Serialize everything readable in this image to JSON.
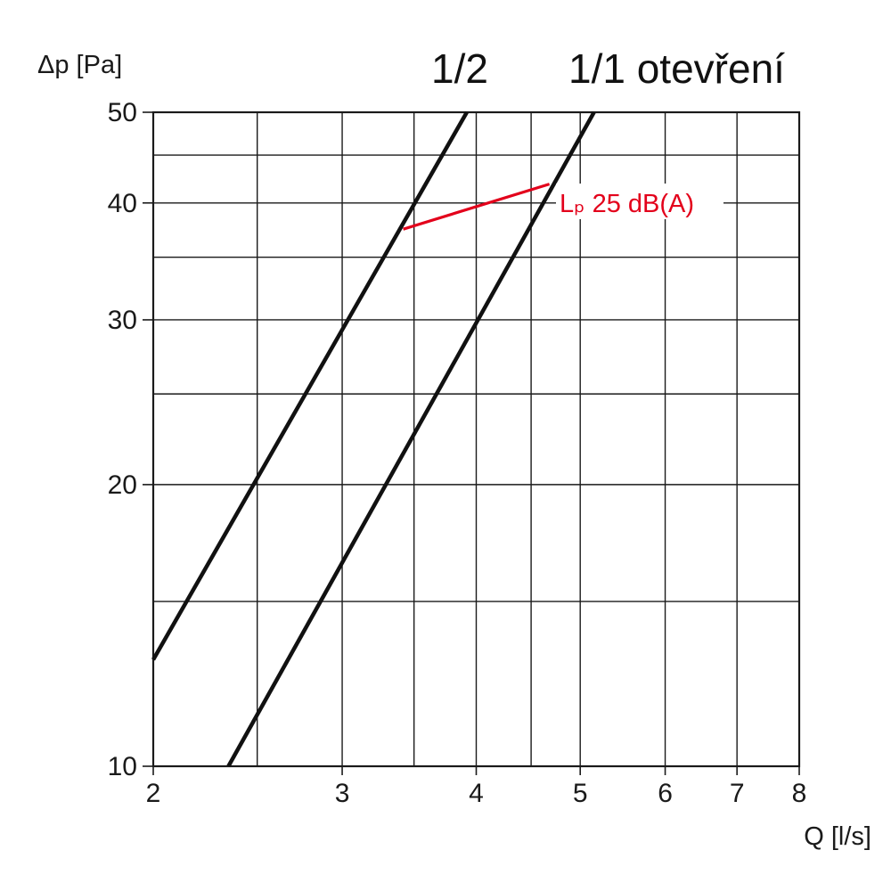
{
  "chart_data": {
    "type": "line",
    "x_scale": "log",
    "y_scale": "log",
    "xlabel": "Q [l/s]",
    "ylabel": "Δp [Pa]",
    "xlim": [
      2,
      8
    ],
    "ylim": [
      10,
      50
    ],
    "x_ticks": [
      2,
      3,
      4,
      5,
      6,
      7,
      8
    ],
    "x_tick_labels": [
      "2",
      "3",
      "4",
      "5",
      "6",
      "7",
      "8"
    ],
    "y_ticks": [
      10,
      20,
      30,
      40,
      50
    ],
    "y_tick_labels": [
      "10",
      "20",
      "30",
      "40",
      "50"
    ],
    "x_grid": [
      2.5,
      3,
      3.5,
      4,
      4.5,
      5,
      6,
      7
    ],
    "y_grid": [
      15,
      20,
      25,
      30,
      35,
      40,
      45
    ],
    "grid": true,
    "series": [
      {
        "name": "1/2",
        "x": [
          2.0,
          3.92
        ],
        "y": [
          13.0,
          50.0
        ],
        "color": "#111111"
      },
      {
        "name": "1/1 otevření",
        "x": [
          2.35,
          5.15
        ],
        "y": [
          10.0,
          50.0
        ],
        "color": "#111111"
      }
    ],
    "annotations": [
      {
        "label": "Lₚ 25 dB(A)",
        "x": [
          3.42,
          4.68
        ],
        "y": [
          37.5,
          41.9
        ],
        "color": "#e3001b"
      }
    ]
  }
}
